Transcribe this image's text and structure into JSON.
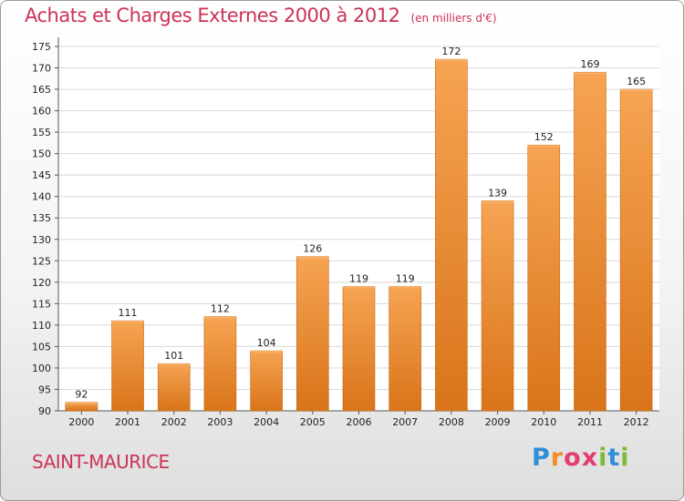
{
  "header": {
    "title": "Achats et Charges Externes 2000 à 2012",
    "subtitle": "(en milliers d'€)"
  },
  "footer": {
    "commune": "SAINT-MAURICE",
    "logo": "Proxiti",
    "logo_colors": [
      "#2f8fd8",
      "#f28c28",
      "#e63c6e",
      "#7cbc3a",
      "#2f8fd8"
    ]
  },
  "chart_data": {
    "type": "bar",
    "title": "Achats et Charges Externes 2000 à 2012",
    "subtitle": "(en milliers d'€)",
    "xlabel": "",
    "ylabel": "",
    "categories": [
      "2000",
      "2001",
      "2002",
      "2003",
      "2004",
      "2005",
      "2006",
      "2007",
      "2008",
      "2009",
      "2010",
      "2011",
      "2012"
    ],
    "values": [
      92,
      111,
      101,
      112,
      104,
      126,
      119,
      119,
      172,
      139,
      152,
      169,
      165
    ],
    "ylim": [
      90,
      175
    ],
    "yticks": [
      90,
      95,
      100,
      105,
      110,
      115,
      120,
      125,
      130,
      135,
      140,
      145,
      150,
      155,
      160,
      165,
      170,
      175
    ],
    "grid": true,
    "bar_color": "#f0963a",
    "legend": "none"
  }
}
